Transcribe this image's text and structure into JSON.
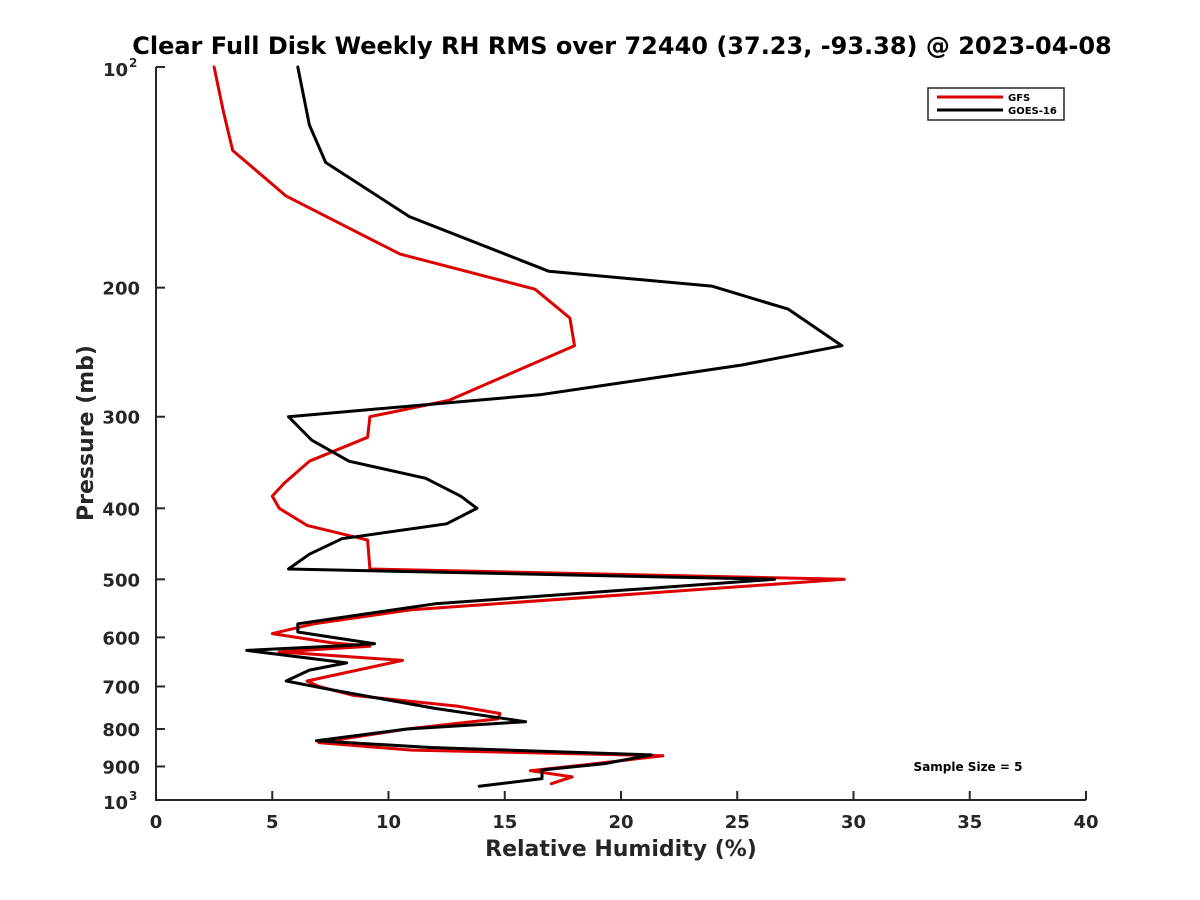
{
  "chart_data": {
    "type": "line",
    "title": "Clear Full Disk Weekly RH RMS over 72440 (37.23, -93.38) @ 2023-04-08",
    "xlabel": "Relative Humidity (%)",
    "ylabel": "Pressure (mb)",
    "xlim": [
      0,
      40
    ],
    "ylim": [
      100,
      1000
    ],
    "yscale": "log",
    "y_reversed": true,
    "grid": false,
    "legend_position": "top-right",
    "x_ticks": [
      "0",
      "5",
      "10",
      "15",
      "20",
      "25",
      "30",
      "35",
      "40"
    ],
    "y_ticks": [
      {
        "value": 100,
        "base": "10",
        "exp": "2"
      },
      {
        "value": 200,
        "label": "200"
      },
      {
        "value": 300,
        "label": "300"
      },
      {
        "value": 400,
        "label": "400"
      },
      {
        "value": 500,
        "label": "500"
      },
      {
        "value": 600,
        "label": "600"
      },
      {
        "value": 700,
        "label": "700"
      },
      {
        "value": 800,
        "label": "800"
      },
      {
        "value": 900,
        "label": "900"
      },
      {
        "value": 1000,
        "base": "10",
        "exp": "3"
      }
    ],
    "annotation": "Sample Size = 5",
    "series": [
      {
        "name": "GFS",
        "color": "#dd0000",
        "points": [
          [
            2.5,
            100
          ],
          [
            2.9,
            115
          ],
          [
            3.3,
            130
          ],
          [
            5.6,
            150
          ],
          [
            10.5,
            180
          ],
          [
            16.3,
            201
          ],
          [
            17.8,
            220
          ],
          [
            18.0,
            240
          ],
          [
            12.6,
            285
          ],
          [
            9.2,
            300
          ],
          [
            9.1,
            320
          ],
          [
            6.6,
            345
          ],
          [
            5.5,
            370
          ],
          [
            5.0,
            385
          ],
          [
            5.3,
            400
          ],
          [
            6.5,
            422
          ],
          [
            9.1,
            442
          ],
          [
            9.2,
            484
          ],
          [
            29.6,
            500
          ],
          [
            11.0,
            550
          ],
          [
            6.8,
            575
          ],
          [
            5.0,
            593
          ],
          [
            7.5,
            610
          ],
          [
            9.2,
            617
          ],
          [
            5.3,
            628
          ],
          [
            10.6,
            645
          ],
          [
            6.5,
            688
          ],
          [
            7.0,
            700
          ],
          [
            8.5,
            720
          ],
          [
            13.0,
            745
          ],
          [
            14.8,
            762
          ],
          [
            14.7,
            775
          ],
          [
            10.8,
            800
          ],
          [
            7.0,
            835
          ],
          [
            11.0,
            855
          ],
          [
            21.8,
            870
          ],
          [
            19.2,
            890
          ],
          [
            16.1,
            912
          ],
          [
            17.9,
            930
          ],
          [
            17.0,
            950
          ]
        ]
      },
      {
        "name": "GOES-16",
        "color": "#000000",
        "points": [
          [
            6.1,
            100
          ],
          [
            6.6,
            120
          ],
          [
            7.3,
            135
          ],
          [
            10.9,
            160
          ],
          [
            16.9,
            190
          ],
          [
            23.9,
            199
          ],
          [
            27.2,
            214
          ],
          [
            29.5,
            240
          ],
          [
            25.2,
            255
          ],
          [
            16.5,
            280
          ],
          [
            5.7,
            300
          ],
          [
            6.7,
            323
          ],
          [
            8.3,
            345
          ],
          [
            11.6,
            364
          ],
          [
            13.1,
            385
          ],
          [
            13.8,
            400
          ],
          [
            12.5,
            420
          ],
          [
            8.0,
            440
          ],
          [
            6.6,
            462
          ],
          [
            5.7,
            484
          ],
          [
            26.6,
            500
          ],
          [
            12.0,
            540
          ],
          [
            6.1,
            575
          ],
          [
            6.1,
            590
          ],
          [
            7.6,
            600
          ],
          [
            9.4,
            612
          ],
          [
            8.0,
            616
          ],
          [
            3.9,
            625
          ],
          [
            8.2,
            650
          ],
          [
            6.6,
            665
          ],
          [
            5.6,
            688
          ],
          [
            7.3,
            705
          ],
          [
            12.0,
            750
          ],
          [
            15.9,
            782
          ],
          [
            10.8,
            800
          ],
          [
            6.9,
            830
          ],
          [
            11.8,
            848
          ],
          [
            21.3,
            868
          ],
          [
            19.3,
            892
          ],
          [
            16.6,
            910
          ],
          [
            16.6,
            935
          ],
          [
            13.9,
            958
          ]
        ]
      }
    ]
  }
}
